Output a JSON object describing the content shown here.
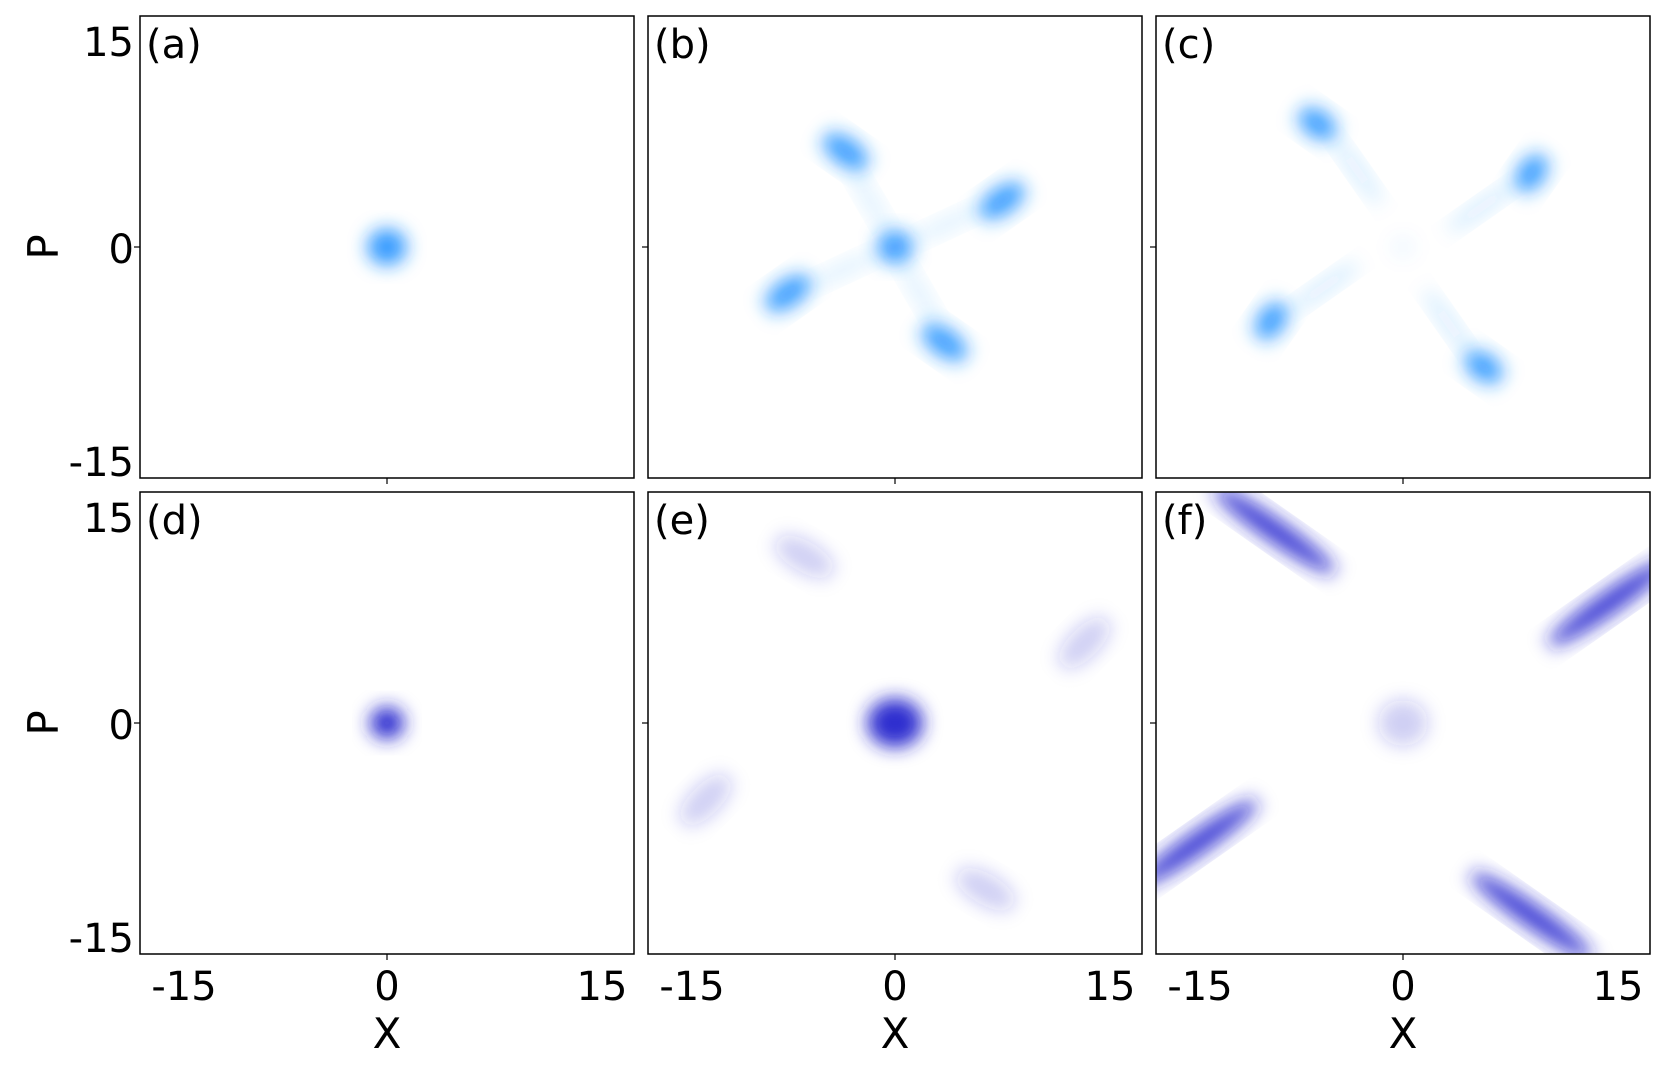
{
  "chart_data": [
    {
      "panel_label": "(a)",
      "type": "heatmap",
      "colormap": "light-blue",
      "xlim": [
        -15,
        15
      ],
      "ylim": [
        -15,
        15
      ],
      "x_ticks": [],
      "y_ticks": [
        "15",
        "0",
        "-15"
      ],
      "xlabel": "",
      "ylabel": "P",
      "blobs": [
        {
          "x": 0,
          "y": 0,
          "sx": 1.2,
          "sy": 1.2,
          "angle": 0,
          "amp": 0.9
        }
      ]
    },
    {
      "panel_label": "(b)",
      "type": "heatmap",
      "colormap": "light-blue",
      "xlim": [
        -15,
        15
      ],
      "ylim": [
        -15,
        15
      ],
      "x_ticks": [],
      "y_ticks": [],
      "xlabel": "",
      "ylabel": "",
      "blobs": [
        {
          "x": 0,
          "y": 0,
          "sx": 1.1,
          "sy": 1.1,
          "angle": 0,
          "amp": 0.85
        },
        {
          "x": -3,
          "y": 6.2,
          "sx": 1.6,
          "sy": 0.9,
          "angle": -35,
          "amp": 0.85
        },
        {
          "x": 6.5,
          "y": 3,
          "sx": 1.6,
          "sy": 0.9,
          "angle": 35,
          "amp": 0.85
        },
        {
          "x": -6.5,
          "y": -3,
          "sx": 1.6,
          "sy": 0.9,
          "angle": 35,
          "amp": 0.85
        },
        {
          "x": 3,
          "y": -6.2,
          "sx": 1.6,
          "sy": 0.9,
          "angle": -35,
          "amp": 0.85
        },
        {
          "x": -1.5,
          "y": 3,
          "sx": 2.5,
          "sy": 0.5,
          "angle": -60,
          "amp": 0.12
        },
        {
          "x": 3.2,
          "y": 1.5,
          "sx": 2.5,
          "sy": 0.5,
          "angle": 25,
          "amp": 0.12
        },
        {
          "x": -3.2,
          "y": -1.5,
          "sx": 2.5,
          "sy": 0.5,
          "angle": 25,
          "amp": 0.12
        },
        {
          "x": 1.5,
          "y": -3,
          "sx": 2.5,
          "sy": 0.5,
          "angle": -60,
          "amp": 0.12
        }
      ]
    },
    {
      "panel_label": "(c)",
      "type": "heatmap",
      "colormap": "light-blue",
      "xlim": [
        -15,
        15
      ],
      "ylim": [
        -15,
        15
      ],
      "x_ticks": [],
      "y_ticks": [],
      "xlabel": "",
      "ylabel": "",
      "blobs": [
        {
          "x": -5.2,
          "y": 8,
          "sx": 1.3,
          "sy": 0.9,
          "angle": -35,
          "amp": 0.85
        },
        {
          "x": 7.8,
          "y": 4.8,
          "sx": 1.3,
          "sy": 0.9,
          "angle": 55,
          "amp": 0.85
        },
        {
          "x": -8,
          "y": -4.8,
          "sx": 1.3,
          "sy": 0.9,
          "angle": 55,
          "amp": 0.85
        },
        {
          "x": 4.9,
          "y": -7.8,
          "sx": 1.3,
          "sy": 0.9,
          "angle": -35,
          "amp": 0.85
        },
        {
          "x": -2.8,
          "y": 5,
          "sx": 2.6,
          "sy": 0.45,
          "angle": -55,
          "amp": 0.18
        },
        {
          "x": 4.8,
          "y": 2.6,
          "sx": 2.6,
          "sy": 0.45,
          "angle": 35,
          "amp": 0.18
        },
        {
          "x": -4.8,
          "y": -2.6,
          "sx": 2.6,
          "sy": 0.45,
          "angle": 35,
          "amp": 0.18
        },
        {
          "x": 2.8,
          "y": -5,
          "sx": 2.6,
          "sy": 0.45,
          "angle": -55,
          "amp": 0.18
        },
        {
          "x": 0,
          "y": 0,
          "sx": 0.8,
          "sy": 0.8,
          "angle": 0,
          "amp": 0.05
        }
      ]
    },
    {
      "panel_label": "(d)",
      "type": "heatmap",
      "colormap": "dark-blue",
      "xlim": [
        -15,
        15
      ],
      "ylim": [
        -15,
        15
      ],
      "x_ticks": [
        "-15",
        "0",
        "15"
      ],
      "y_ticks": [
        "15",
        "0",
        "-15"
      ],
      "xlabel": "X",
      "ylabel": "P",
      "blobs": [
        {
          "x": 0,
          "y": 0,
          "sx": 1.05,
          "sy": 1.05,
          "angle": 0,
          "amp": 0.95
        }
      ]
    },
    {
      "panel_label": "(e)",
      "type": "heatmap",
      "colormap": "dark-blue",
      "xlim": [
        -15,
        15
      ],
      "ylim": [
        -15,
        15
      ],
      "x_ticks": [
        "-15",
        "0",
        "15"
      ],
      "y_ticks": [],
      "xlabel": "X",
      "ylabel": "",
      "blobs": [
        {
          "x": 0,
          "y": 0,
          "sx": 1.7,
          "sy": 1.6,
          "angle": 0,
          "amp": 0.95
        },
        {
          "x": -5.5,
          "y": 10.8,
          "sx": 2.0,
          "sy": 1.0,
          "angle": -30,
          "amp": 0.22
        },
        {
          "x": 11.5,
          "y": 5.2,
          "sx": 2.0,
          "sy": 1.0,
          "angle": 45,
          "amp": 0.22
        },
        {
          "x": -11.5,
          "y": -5,
          "sx": 2.0,
          "sy": 1.0,
          "angle": 45,
          "amp": 0.22
        },
        {
          "x": 5.5,
          "y": -10.8,
          "sx": 2.0,
          "sy": 1.0,
          "angle": -30,
          "amp": 0.22
        }
      ]
    },
    {
      "panel_label": "(f)",
      "type": "heatmap",
      "colormap": "dark-blue",
      "xlim": [
        -15,
        15
      ],
      "ylim": [
        -15,
        15
      ],
      "x_ticks": [
        "-15",
        "0",
        "15"
      ],
      "y_ticks": [],
      "xlabel": "X",
      "ylabel": "",
      "blobs": [
        {
          "x": -7.8,
          "y": 12.5,
          "sx": 4.5,
          "sy": 0.75,
          "angle": -35,
          "amp": 0.85
        },
        {
          "x": 12.5,
          "y": 7.8,
          "sx": 4.5,
          "sy": 0.75,
          "angle": 35,
          "amp": 0.85
        },
        {
          "x": -12.5,
          "y": -7.8,
          "sx": 4.5,
          "sy": 0.75,
          "angle": 35,
          "amp": 0.85
        },
        {
          "x": 7.8,
          "y": -12.5,
          "sx": 4.5,
          "sy": 0.75,
          "angle": -35,
          "amp": 0.85
        },
        {
          "x": 0,
          "y": 0,
          "sx": 1.5,
          "sy": 1.5,
          "angle": 0,
          "amp": 0.22
        }
      ]
    }
  ],
  "colors": {
    "light-blue": "#1e90ff",
    "dark-blue": "#2222cc",
    "axis": "#000000",
    "text": "#000000"
  }
}
